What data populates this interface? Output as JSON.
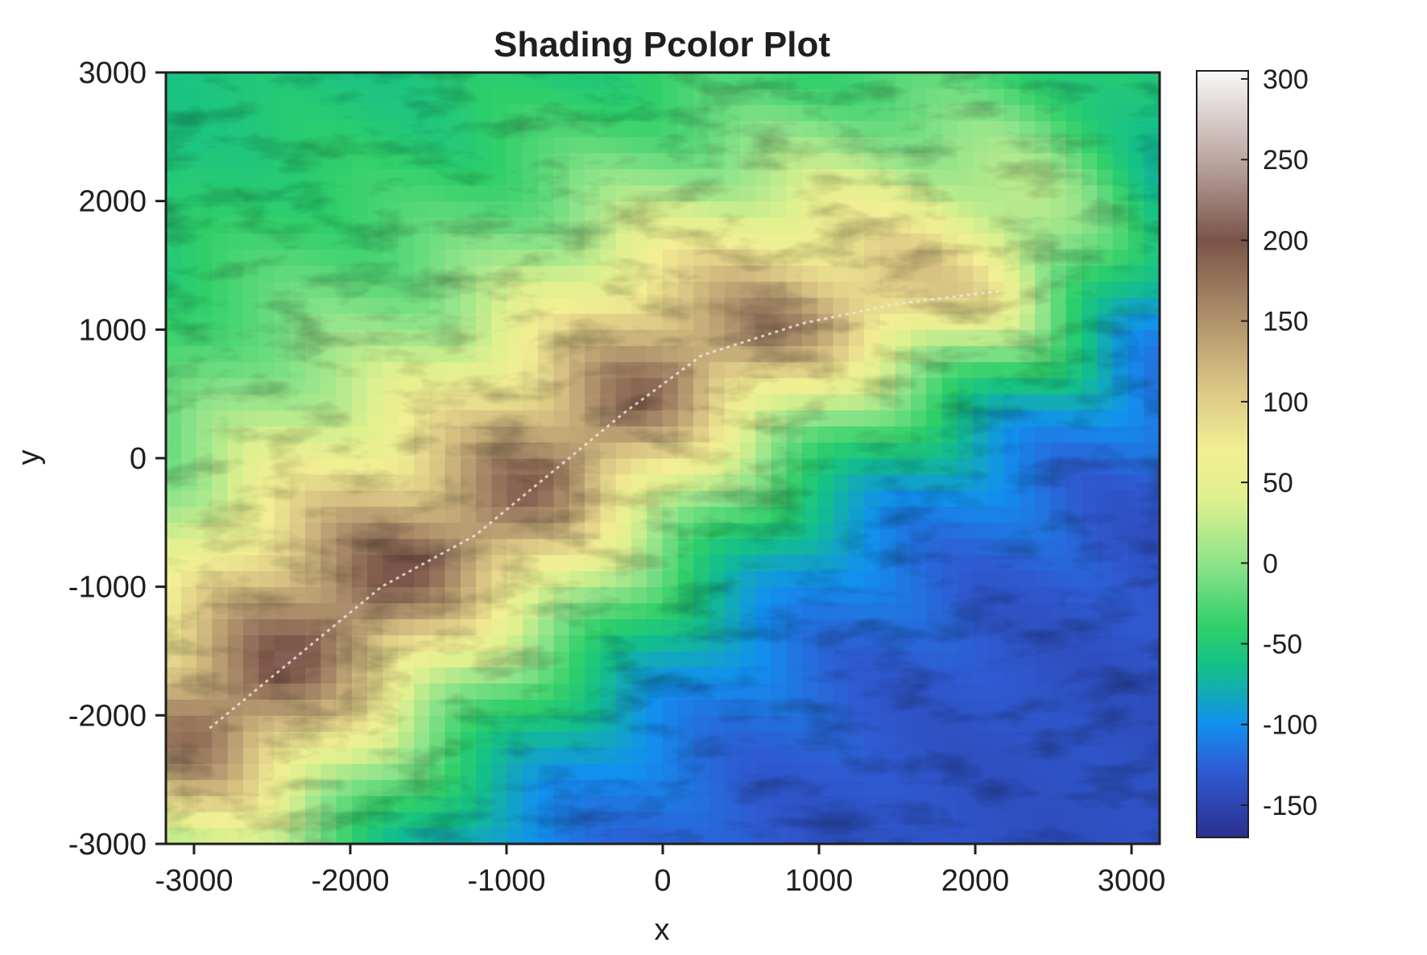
{
  "chart_data": {
    "type": "heatmap",
    "title": "Shading Pcolor Plot",
    "xlabel": "x",
    "ylabel": "y",
    "xlim": [
      -3180,
      3180
    ],
    "ylim": [
      -3000,
      3000
    ],
    "xticks": [
      -3000,
      -2000,
      -1000,
      0,
      1000,
      2000,
      3000
    ],
    "yticks": [
      -3000,
      -2000,
      -1000,
      0,
      1000,
      2000,
      3000
    ],
    "xtick_labels": [
      "-3000",
      "-2000",
      "-1000",
      "0",
      "1000",
      "2000",
      "3000"
    ],
    "ytick_labels": [
      "-3000",
      "-2000",
      "-1000",
      "0",
      "1000",
      "2000",
      "3000"
    ],
    "shading": "interp",
    "colormap": "terrain",
    "colorbar": {
      "range": [
        -170,
        305
      ],
      "ticks": [
        -150,
        -100,
        -50,
        0,
        50,
        100,
        150,
        200,
        250,
        300
      ],
      "tick_labels": [
        "-150",
        "-100",
        "-50",
        "0",
        "50",
        "100",
        "150",
        "200",
        "250",
        "300"
      ],
      "stops": [
        {
          "value": -170,
          "color": "#2b2f8f"
        },
        {
          "value": -130,
          "color": "#2f5ad1"
        },
        {
          "value": -100,
          "color": "#1290f0"
        },
        {
          "value": -65,
          "color": "#13bf8a"
        },
        {
          "value": -40,
          "color": "#2fcf6a"
        },
        {
          "value": 0,
          "color": "#8ee38a"
        },
        {
          "value": 40,
          "color": "#dff08f"
        },
        {
          "value": 70,
          "color": "#f2ee93"
        },
        {
          "value": 110,
          "color": "#d9c484"
        },
        {
          "value": 160,
          "color": "#a58666"
        },
        {
          "value": 200,
          "color": "#7a5448"
        },
        {
          "value": 250,
          "color": "#bda7a2"
        },
        {
          "value": 305,
          "color": "#f8f8f8"
        }
      ]
    },
    "features": {
      "ridge_line": [
        [
          -2900,
          -2100
        ],
        [
          -2300,
          -1500
        ],
        [
          -1800,
          -1000
        ],
        [
          -1200,
          -600
        ],
        [
          -750,
          -150
        ],
        [
          -250,
          350
        ],
        [
          250,
          800
        ],
        [
          900,
          1050
        ],
        [
          1500,
          1200
        ],
        [
          2150,
          1300
        ]
      ],
      "peak": [
        -650,
        0
      ],
      "plain_region": {
        "value": -140,
        "area": "east and south-east lowlands"
      }
    },
    "grid": false,
    "legend": "none"
  }
}
